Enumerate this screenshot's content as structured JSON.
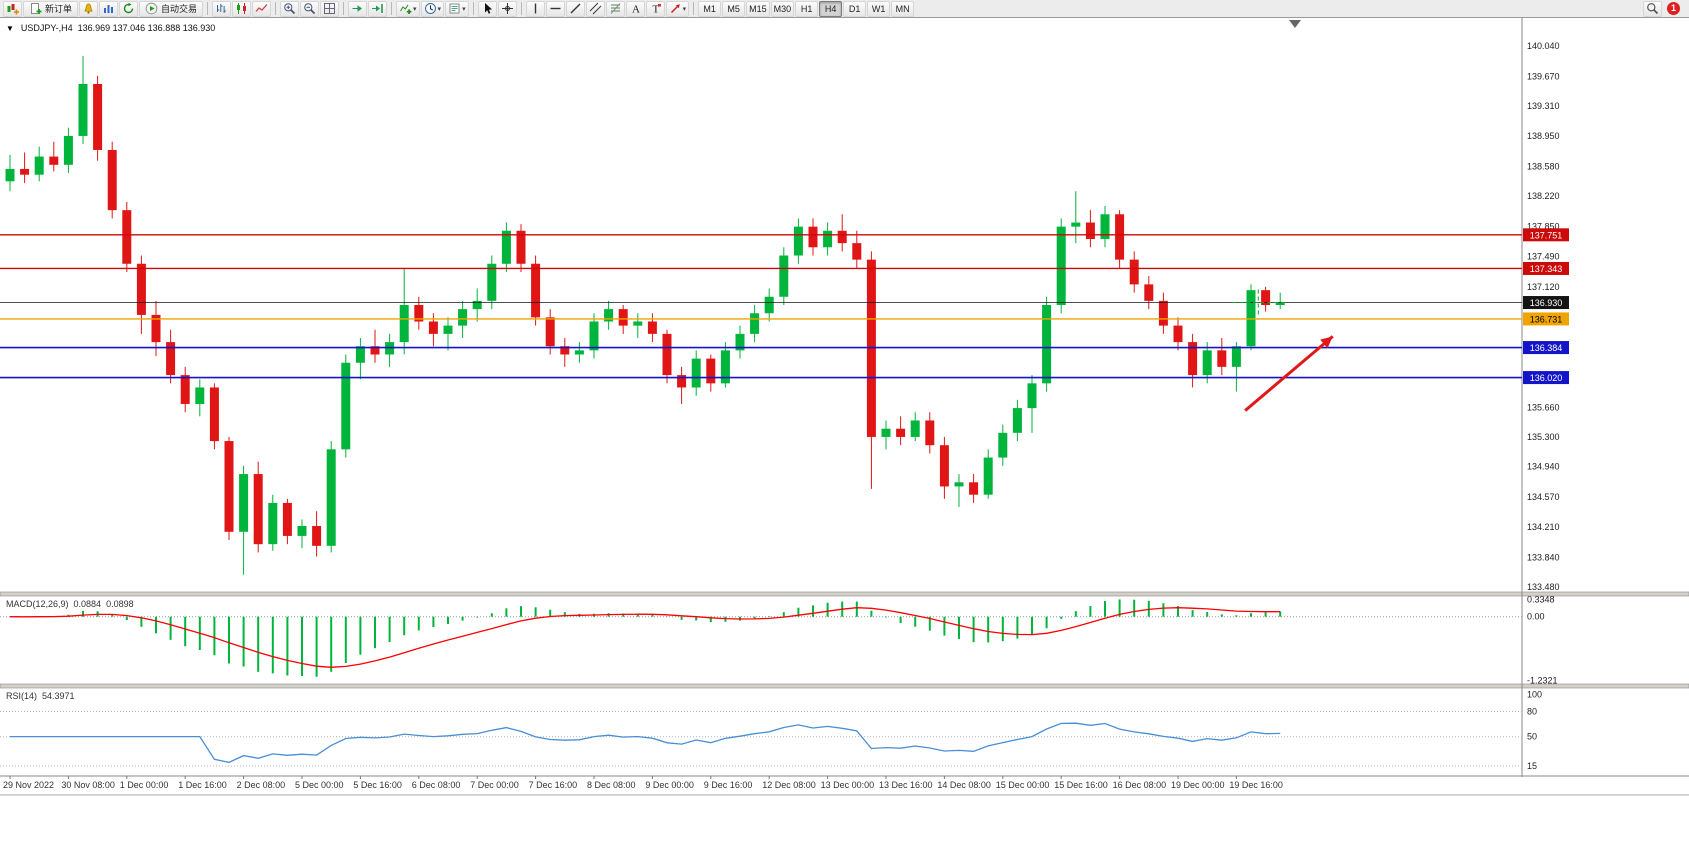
{
  "toolbar": {
    "items": [
      {
        "name": "new-chart",
        "glyph": "chart-plus"
      },
      {
        "name": "new-order",
        "glyph": "order",
        "label": "新订单"
      },
      {
        "name": "alerts",
        "glyph": "bell"
      },
      {
        "name": "market-watch",
        "glyph": "chart"
      },
      {
        "name": "refresh",
        "glyph": "cycle"
      },
      {
        "name": "auto-trading",
        "glyph": "play",
        "label": "自动交易"
      },
      {
        "sep": true
      },
      {
        "name": "bar-chart-mode",
        "glyph": "bars"
      },
      {
        "name": "candlestick-mode",
        "glyph": "candles"
      },
      {
        "name": "line-chart-mode",
        "glyph": "line"
      },
      {
        "sep": true
      },
      {
        "name": "zoom-in",
        "glyph": "zoom-in"
      },
      {
        "name": "zoom-out",
        "glyph": "zoom-out"
      },
      {
        "name": "tile-windows",
        "glyph": "grid"
      },
      {
        "sep": true
      },
      {
        "name": "auto-scroll",
        "glyph": "autoscroll"
      },
      {
        "name": "chart-shift",
        "glyph": "shift"
      },
      {
        "sep": true
      },
      {
        "name": "indicators",
        "glyph": "indicators",
        "caret": true
      },
      {
        "name": "periods",
        "glyph": "clock",
        "caret": true
      },
      {
        "name": "templates",
        "glyph": "template",
        "caret": true
      },
      {
        "sep": true
      },
      {
        "name": "cursor",
        "glyph": "cursor"
      },
      {
        "name": "crosshair",
        "glyph": "crosshair"
      },
      {
        "sep": true
      },
      {
        "name": "vertical-line",
        "glyph": "vline"
      },
      {
        "name": "horizontal-line",
        "glyph": "hline"
      },
      {
        "name": "trendline",
        "glyph": "trend"
      },
      {
        "name": "equidistant-channel",
        "glyph": "channel"
      },
      {
        "name": "fibonacci",
        "glyph": "fibo"
      },
      {
        "name": "text",
        "glyph": "textA"
      },
      {
        "name": "text-label",
        "glyph": "textT"
      },
      {
        "name": "arrows",
        "glyph": "arrow",
        "caret": true
      },
      {
        "sep": true
      }
    ],
    "timeframes": [
      "M1",
      "M5",
      "M15",
      "M30",
      "H1",
      "H4",
      "D1",
      "W1",
      "MN"
    ],
    "active_timeframe": "H4",
    "notification_count": "1"
  },
  "chart": {
    "collapse_glyph": "▼",
    "symbol_period": "USDJPY-,H4",
    "ohlc": "136.969 137.046 136.888 136.930"
  },
  "chart_data": {
    "type": "candlestick",
    "symbol": "USDJPY-",
    "timeframe": "H4",
    "colors": {
      "bull": "#00b43c",
      "bear": "#e01515",
      "background": "#ffffff"
    },
    "price_axis_labels": [
      "140.040",
      "139.670",
      "139.310",
      "138.950",
      "138.580",
      "138.220",
      "137.850",
      "137.490",
      "137.120",
      "136.760",
      "136.390",
      "136.020",
      "135.660",
      "135.300",
      "134.940",
      "134.570",
      "134.210",
      "133.840",
      "133.480"
    ],
    "time_labels": [
      "29 Nov 2022",
      "30 Nov 08:00",
      "1 Dec 00:00",
      "1 Dec 16:00",
      "2 Dec 08:00",
      "5 Dec 00:00",
      "5 Dec 16:00",
      "6 Dec 08:00",
      "7 Dec 00:00",
      "7 Dec 16:00",
      "8 Dec 08:00",
      "9 Dec 00:00",
      "9 Dec 16:00",
      "12 Dec 08:00",
      "13 Dec 00:00",
      "13 Dec 16:00",
      "14 Dec 08:00",
      "15 Dec 00:00",
      "15 Dec 16:00",
      "16 Dec 08:00",
      "19 Dec 00:00",
      "19 Dec 16:00"
    ],
    "candles_ohlc": [
      [
        138.4,
        138.72,
        138.28,
        138.55
      ],
      [
        138.55,
        138.75,
        138.38,
        138.48
      ],
      [
        138.48,
        138.82,
        138.4,
        138.7
      ],
      [
        138.7,
        138.88,
        138.52,
        138.6
      ],
      [
        138.6,
        139.05,
        138.5,
        138.95
      ],
      [
        138.95,
        139.92,
        138.85,
        139.58
      ],
      [
        139.58,
        139.68,
        138.65,
        138.78
      ],
      [
        138.78,
        138.88,
        137.95,
        138.05
      ],
      [
        138.05,
        138.15,
        137.3,
        137.4
      ],
      [
        137.4,
        137.5,
        136.55,
        136.78
      ],
      [
        136.78,
        136.95,
        136.28,
        136.45
      ],
      [
        136.45,
        136.6,
        135.95,
        136.05
      ],
      [
        136.05,
        136.15,
        135.6,
        135.7
      ],
      [
        135.7,
        136.0,
        135.55,
        135.9
      ],
      [
        135.9,
        135.95,
        135.15,
        135.25
      ],
      [
        135.25,
        135.3,
        134.05,
        134.15
      ],
      [
        134.15,
        134.95,
        133.63,
        134.85
      ],
      [
        134.85,
        135.0,
        133.9,
        134.0
      ],
      [
        134.0,
        134.6,
        133.92,
        134.5
      ],
      [
        134.5,
        134.55,
        134.0,
        134.1
      ],
      [
        134.1,
        134.3,
        133.95,
        134.22
      ],
      [
        134.22,
        134.4,
        133.85,
        133.98
      ],
      [
        133.98,
        135.25,
        133.9,
        135.15
      ],
      [
        135.15,
        136.3,
        135.05,
        136.2
      ],
      [
        136.2,
        136.5,
        136.0,
        136.4
      ],
      [
        136.4,
        136.6,
        136.2,
        136.3
      ],
      [
        136.3,
        136.55,
        136.15,
        136.45
      ],
      [
        136.45,
        137.35,
        136.3,
        136.9
      ],
      [
        136.9,
        137.0,
        136.6,
        136.7
      ],
      [
        136.7,
        136.8,
        136.4,
        136.55
      ],
      [
        136.55,
        136.75,
        136.35,
        136.65
      ],
      [
        136.65,
        136.95,
        136.5,
        136.85
      ],
      [
        136.85,
        137.1,
        136.7,
        136.95
      ],
      [
        136.95,
        137.5,
        136.85,
        137.4
      ],
      [
        137.4,
        137.9,
        137.3,
        137.8
      ],
      [
        137.8,
        137.88,
        137.3,
        137.4
      ],
      [
        137.4,
        137.5,
        136.65,
        136.75
      ],
      [
        136.75,
        136.85,
        136.3,
        136.4
      ],
      [
        136.4,
        136.5,
        136.15,
        136.3
      ],
      [
        136.3,
        136.45,
        136.2,
        136.35
      ],
      [
        136.35,
        136.8,
        136.25,
        136.7
      ],
      [
        136.7,
        136.95,
        136.6,
        136.85
      ],
      [
        136.85,
        136.9,
        136.55,
        136.65
      ],
      [
        136.65,
        136.8,
        136.5,
        136.7
      ],
      [
        136.7,
        136.8,
        136.45,
        136.55
      ],
      [
        136.55,
        136.6,
        135.95,
        136.05
      ],
      [
        136.05,
        136.15,
        135.7,
        135.9
      ],
      [
        135.9,
        136.35,
        135.8,
        136.25
      ],
      [
        136.25,
        136.3,
        135.85,
        135.95
      ],
      [
        135.95,
        136.45,
        135.9,
        136.35
      ],
      [
        136.35,
        136.65,
        136.25,
        136.55
      ],
      [
        136.55,
        136.9,
        136.45,
        136.8
      ],
      [
        136.8,
        137.1,
        136.7,
        137.0
      ],
      [
        137.0,
        137.6,
        136.9,
        137.5
      ],
      [
        137.5,
        137.95,
        137.4,
        137.85
      ],
      [
        137.85,
        137.95,
        137.5,
        137.6
      ],
      [
        137.6,
        137.9,
        137.5,
        137.8
      ],
      [
        137.8,
        138.0,
        137.55,
        137.65
      ],
      [
        137.65,
        137.8,
        137.35,
        137.45
      ],
      [
        137.45,
        137.55,
        134.67,
        135.3
      ],
      [
        135.3,
        135.5,
        135.15,
        135.4
      ],
      [
        135.4,
        135.55,
        135.2,
        135.3
      ],
      [
        135.3,
        135.6,
        135.25,
        135.5
      ],
      [
        135.5,
        135.6,
        135.1,
        135.2
      ],
      [
        135.2,
        135.3,
        134.55,
        134.7
      ],
      [
        134.7,
        134.85,
        134.45,
        134.75
      ],
      [
        134.75,
        134.85,
        134.5,
        134.6
      ],
      [
        134.6,
        135.15,
        134.55,
        135.05
      ],
      [
        135.05,
        135.45,
        134.95,
        135.35
      ],
      [
        135.35,
        135.75,
        135.25,
        135.65
      ],
      [
        135.65,
        136.05,
        135.35,
        135.95
      ],
      [
        135.95,
        137.0,
        135.85,
        136.9
      ],
      [
        136.9,
        137.95,
        136.8,
        137.85
      ],
      [
        137.85,
        138.28,
        137.65,
        137.9
      ],
      [
        137.9,
        138.05,
        137.6,
        137.7
      ],
      [
        137.7,
        138.1,
        137.6,
        138.0
      ],
      [
        138.0,
        138.05,
        137.35,
        137.45
      ],
      [
        137.45,
        137.55,
        137.05,
        137.15
      ],
      [
        137.15,
        137.25,
        136.85,
        136.95
      ],
      [
        136.95,
        137.05,
        136.55,
        136.65
      ],
      [
        136.65,
        136.75,
        136.35,
        136.45
      ],
      [
        136.45,
        136.55,
        135.9,
        136.05
      ],
      [
        136.05,
        136.45,
        135.95,
        136.35
      ],
      [
        136.35,
        136.5,
        136.05,
        136.15
      ],
      [
        136.15,
        136.45,
        135.85,
        136.4
      ],
      [
        136.4,
        137.15,
        136.35,
        137.08
      ],
      [
        137.08,
        137.12,
        136.82,
        136.9
      ],
      [
        136.9,
        137.05,
        136.85,
        136.93
      ]
    ],
    "levels": [
      {
        "label": "137.751",
        "price": 137.751,
        "color": "#cc0a0a",
        "width": 1.4,
        "text": "#ffffff",
        "kind": "resistance"
      },
      {
        "label": "137.343",
        "price": 137.343,
        "color": "#cc0a0a",
        "width": 1.4,
        "text": "#ffffff",
        "kind": "resistance"
      },
      {
        "label": "136.930",
        "price": 136.93,
        "color": "#141414",
        "width": 0.8,
        "text": "#ffffff",
        "kind": "current-price"
      },
      {
        "label": "136.731",
        "price": 136.731,
        "color": "#efa400",
        "width": 1.4,
        "text": "#000000",
        "kind": "level"
      },
      {
        "label": "136.384",
        "price": 136.384,
        "color": "#1414c8",
        "width": 1.6,
        "text": "#ffffff",
        "kind": "support"
      },
      {
        "label": "136.020",
        "price": 136.02,
        "color": "#1414c8",
        "width": 1.6,
        "text": "#ffffff",
        "kind": "support"
      }
    ],
    "macd": {
      "label": "MACD(12,26,9)",
      "values": [
        "0.0884",
        "0.0898"
      ],
      "axis_labels": [
        "0.3348",
        "0.00",
        "-1.2321"
      ],
      "histogram_color": "#00b43c",
      "signal_color": "#ff0000"
    },
    "rsi": {
      "label": "RSI(14)",
      "value": "54.3971",
      "axis_labels": [
        "100",
        "80",
        "50",
        "15"
      ],
      "levels": [
        80,
        50,
        15
      ],
      "line_color": "#4a8fd4"
    },
    "annotations": [
      {
        "type": "dashed-cross",
        "candle_index": 85.5,
        "price": 136.93,
        "color": "#00a832"
      },
      {
        "type": "arrow",
        "from": {
          "candle_index": 84.6,
          "price": 135.62
        },
        "to": {
          "candle_index": 90.6,
          "price": 136.52
        },
        "color": "#e01818"
      }
    ]
  }
}
